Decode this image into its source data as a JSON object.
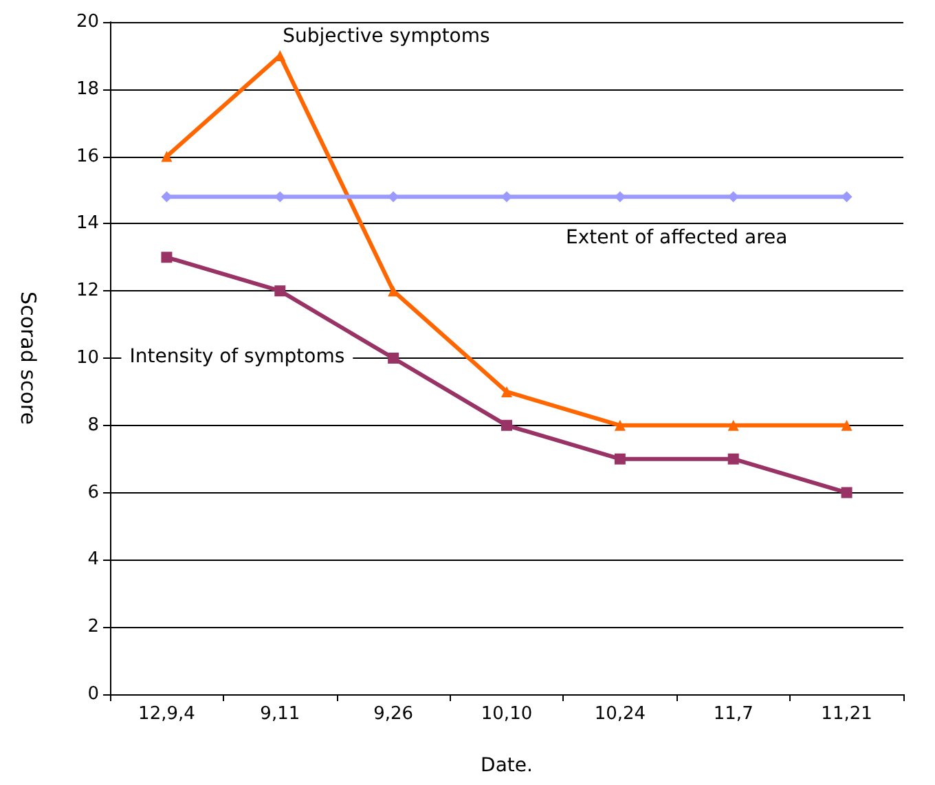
{
  "chart_data": {
    "type": "line",
    "xlabel": "Date.",
    "ylabel": "Scorad score",
    "categories": [
      "12,9,4",
      "9,11",
      "9,26",
      "10,10",
      "10,24",
      "11,7",
      "11,21"
    ],
    "series": [
      {
        "name": "Subjective symptoms",
        "color": "#ff6600",
        "marker": "triangle",
        "values": [
          16,
          19,
          12,
          9,
          8,
          8,
          8
        ]
      },
      {
        "name": "Extent of affected area",
        "color": "#9999ff",
        "marker": "diamond",
        "values": [
          14.8,
          14.8,
          14.8,
          14.8,
          14.8,
          14.8,
          14.8
        ]
      },
      {
        "name": "Intensity of symptoms",
        "color": "#993366",
        "marker": "square",
        "values": [
          13,
          12,
          10,
          8,
          7,
          7,
          6
        ]
      }
    ],
    "ylim": [
      0,
      20
    ],
    "yticks": [
      0,
      2,
      4,
      6,
      8,
      10,
      12,
      14,
      16,
      18,
      20
    ],
    "grid": "y",
    "legend": false,
    "line_style": "solid"
  }
}
